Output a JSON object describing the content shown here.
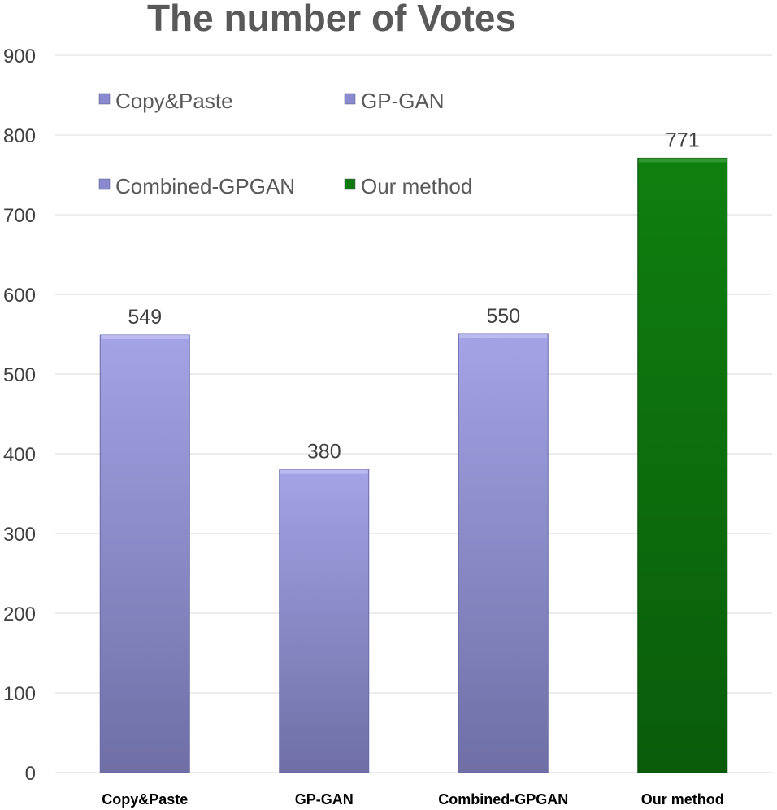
{
  "chart_data": {
    "type": "bar",
    "title": "The number of Votes",
    "categories": [
      "Copy&Paste",
      "GP-GAN",
      "Combined-GPGAN",
      "Our method"
    ],
    "values": [
      549,
      380,
      550,
      771
    ],
    "data_labels": [
      "549",
      "380",
      "550",
      "771"
    ],
    "bar_colors": [
      "#9b9be0",
      "#9b9be0",
      "#9b9be0",
      "#0e7a0e"
    ],
    "ylim": [
      0,
      900
    ],
    "yticks": [
      0,
      100,
      200,
      300,
      400,
      500,
      600,
      700,
      800,
      900
    ],
    "grid": true,
    "legend_position": "top-left",
    "legend": [
      {
        "name": "Copy&Paste",
        "color": "#8a8ad0"
      },
      {
        "name": "GP-GAN",
        "color": "#8a8ad0"
      },
      {
        "name": "Combined-GPGAN",
        "color": "#8a8ad0"
      },
      {
        "name": "Our method",
        "color": "#0e7a0e"
      }
    ]
  }
}
